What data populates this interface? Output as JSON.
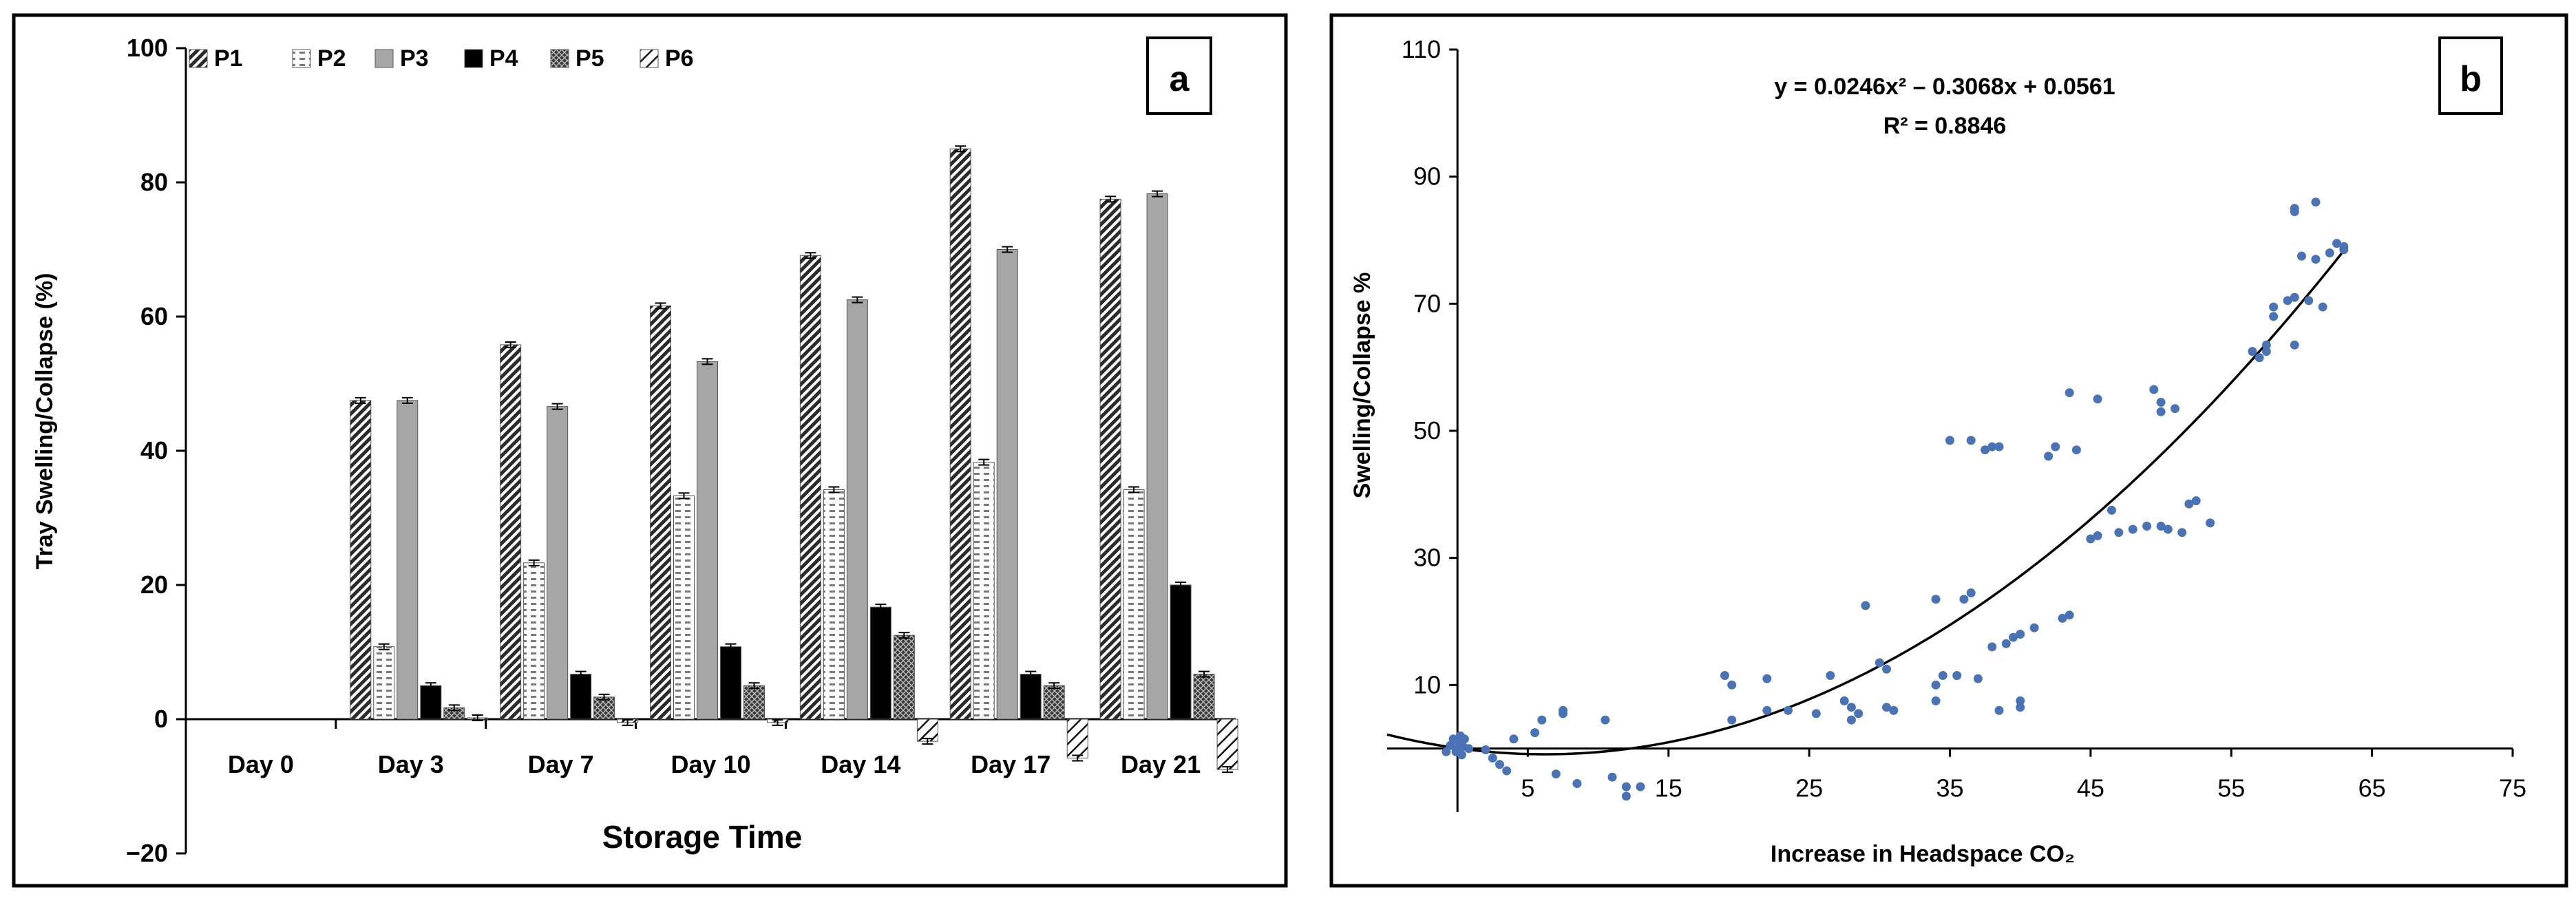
{
  "colors": {
    "frame": "#000000",
    "scatter": "#4a73b5",
    "bar_p3": "#a6a6a6",
    "bar_p4": "#000000"
  },
  "chart_data": [
    {
      "panel": "a",
      "type": "bar",
      "xlabel": "Storage Time",
      "ylabel": "Tray Swelling/Collapse (%)",
      "ylim": [
        -20,
        100
      ],
      "yticks": [
        -20,
        0,
        20,
        40,
        60,
        80,
        100
      ],
      "ytick_labels": [
        "−20",
        "0",
        "20",
        "40",
        "60",
        "80",
        "100"
      ],
      "legend_position": "top-left",
      "grid": false,
      "categories": [
        "Day 0",
        "Day 3",
        "Day 7",
        "Day 10",
        "Day 14",
        "Day 17",
        "Day 21"
      ],
      "series": [
        {
          "name": "P1",
          "pattern": "diagonal-dense",
          "values": [
            0,
            47.5,
            55.8,
            61.6,
            69.1,
            85.0,
            77.5
          ]
        },
        {
          "name": "P2",
          "pattern": "horizontal-dash",
          "values": [
            0,
            10.8,
            23.3,
            33.3,
            34.2,
            38.3,
            34.2
          ]
        },
        {
          "name": "P3",
          "pattern": "solid-gray",
          "values": [
            0,
            47.5,
            46.6,
            53.3,
            62.5,
            70.0,
            78.3
          ]
        },
        {
          "name": "P4",
          "pattern": "solid-black",
          "values": [
            0,
            5.0,
            6.7,
            10.8,
            16.7,
            6.7,
            20.0
          ]
        },
        {
          "name": "P5",
          "pattern": "crosshatch",
          "values": [
            0,
            1.7,
            3.3,
            5.0,
            12.5,
            5.0,
            6.7
          ]
        },
        {
          "name": "P6",
          "pattern": "diagonal-wide",
          "values": [
            0,
            0.2,
            -0.5,
            -0.5,
            -3.3,
            -5.8,
            -7.5
          ]
        }
      ],
      "error": 0.6
    },
    {
      "panel": "b",
      "type": "scatter",
      "xlabel": "Increase in Headspace CO₂",
      "ylabel": "Swelling/Collapse %",
      "xlim": [
        -5,
        75
      ],
      "ylim": [
        -10,
        110
      ],
      "xticks": [
        5,
        15,
        25,
        35,
        45,
        55,
        65,
        75
      ],
      "yticks": [
        10,
        30,
        50,
        70,
        90,
        110
      ],
      "grid": false,
      "equation": "y = 0.0246x² – 0.3068x + 0.0561",
      "r_squared": "R² = 0.8846",
      "trendline": {
        "a": 0.0246,
        "b": -0.3068,
        "c": 0.0561,
        "x_from": -5,
        "x_to": 63
      },
      "points": [
        [
          -0.5,
          0.5
        ],
        [
          -0.3,
          1.5
        ],
        [
          -0.1,
          -0.5
        ],
        [
          0.0,
          0.0
        ],
        [
          0.1,
          1.0
        ],
        [
          0.2,
          2.0
        ],
        [
          0.3,
          -1.0
        ],
        [
          0.4,
          0.3
        ],
        [
          0.5,
          1.5
        ],
        [
          0.8,
          0.0
        ],
        [
          -0.8,
          -0.5
        ],
        [
          2,
          -0.2
        ],
        [
          2.5,
          -1.5
        ],
        [
          3,
          -2.5
        ],
        [
          3.5,
          -3.5
        ],
        [
          4,
          1.5
        ],
        [
          5.5,
          2.5
        ],
        [
          6,
          4.5
        ],
        [
          7,
          -4.0
        ],
        [
          7.5,
          5.5
        ],
        [
          7.5,
          6.0
        ],
        [
          8.5,
          -5.5
        ],
        [
          10.5,
          4.5
        ],
        [
          11,
          -4.5
        ],
        [
          12,
          -6.0
        ],
        [
          12,
          -7.5
        ],
        [
          13,
          -6.0
        ],
        [
          19,
          11.5
        ],
        [
          19.5,
          10.0
        ],
        [
          19.5,
          4.5
        ],
        [
          22,
          6.0
        ],
        [
          22,
          11.0
        ],
        [
          23.5,
          6.0
        ],
        [
          25.5,
          5.5
        ],
        [
          26.5,
          11.5
        ],
        [
          27.5,
          7.5
        ],
        [
          28,
          4.5
        ],
        [
          28,
          6.5
        ],
        [
          28.5,
          5.5
        ],
        [
          29,
          22.5
        ],
        [
          30,
          13.5
        ],
        [
          30.5,
          12.5
        ],
        [
          30.5,
          6.5
        ],
        [
          31,
          6.0
        ],
        [
          34,
          10.0
        ],
        [
          34,
          7.5
        ],
        [
          34,
          23.5
        ],
        [
          34.5,
          11.5
        ],
        [
          35,
          48.5
        ],
        [
          35.5,
          11.5
        ],
        [
          36,
          23.5
        ],
        [
          36.5,
          24.5
        ],
        [
          36.5,
          48.5
        ],
        [
          37,
          11.0
        ],
        [
          37.5,
          47.0
        ],
        [
          38,
          47.5
        ],
        [
          38,
          16.0
        ],
        [
          38.5,
          47.5
        ],
        [
          38.5,
          6.0
        ],
        [
          39,
          16.5
        ],
        [
          39.5,
          17.5
        ],
        [
          40,
          6.5
        ],
        [
          40,
          7.5
        ],
        [
          40,
          18.0
        ],
        [
          41,
          19.0
        ],
        [
          42,
          46.0
        ],
        [
          42.5,
          47.5
        ],
        [
          43,
          20.5
        ],
        [
          43.5,
          21.0
        ],
        [
          43.5,
          56.0
        ],
        [
          44,
          47.0
        ],
        [
          45,
          33.0
        ],
        [
          45.5,
          55.0
        ],
        [
          45.5,
          33.5
        ],
        [
          46.5,
          37.5
        ],
        [
          47,
          34.0
        ],
        [
          48,
          34.5
        ],
        [
          49,
          35.0
        ],
        [
          49.5,
          56.5
        ],
        [
          50,
          54.5
        ],
        [
          50,
          53.0
        ],
        [
          50,
          35.0
        ],
        [
          50.5,
          34.5
        ],
        [
          51,
          53.5
        ],
        [
          51.5,
          34.0
        ],
        [
          52,
          38.5
        ],
        [
          52.5,
          39.0
        ],
        [
          53.5,
          35.5
        ],
        [
          56.5,
          62.5
        ],
        [
          57,
          61.5
        ],
        [
          57.5,
          62.5
        ],
        [
          57.5,
          63.5
        ],
        [
          58,
          69.5
        ],
        [
          58,
          68.0
        ],
        [
          59,
          70.5
        ],
        [
          59.5,
          71.0
        ],
        [
          59.5,
          63.5
        ],
        [
          59.5,
          84.5
        ],
        [
          59.5,
          85.0
        ],
        [
          60,
          77.5
        ],
        [
          60.5,
          70.5
        ],
        [
          61,
          77.0
        ],
        [
          61,
          86.0
        ],
        [
          61.5,
          69.5
        ],
        [
          62,
          78.0
        ],
        [
          62.5,
          79.5
        ],
        [
          63,
          78.5
        ],
        [
          63,
          79.0
        ]
      ]
    }
  ]
}
